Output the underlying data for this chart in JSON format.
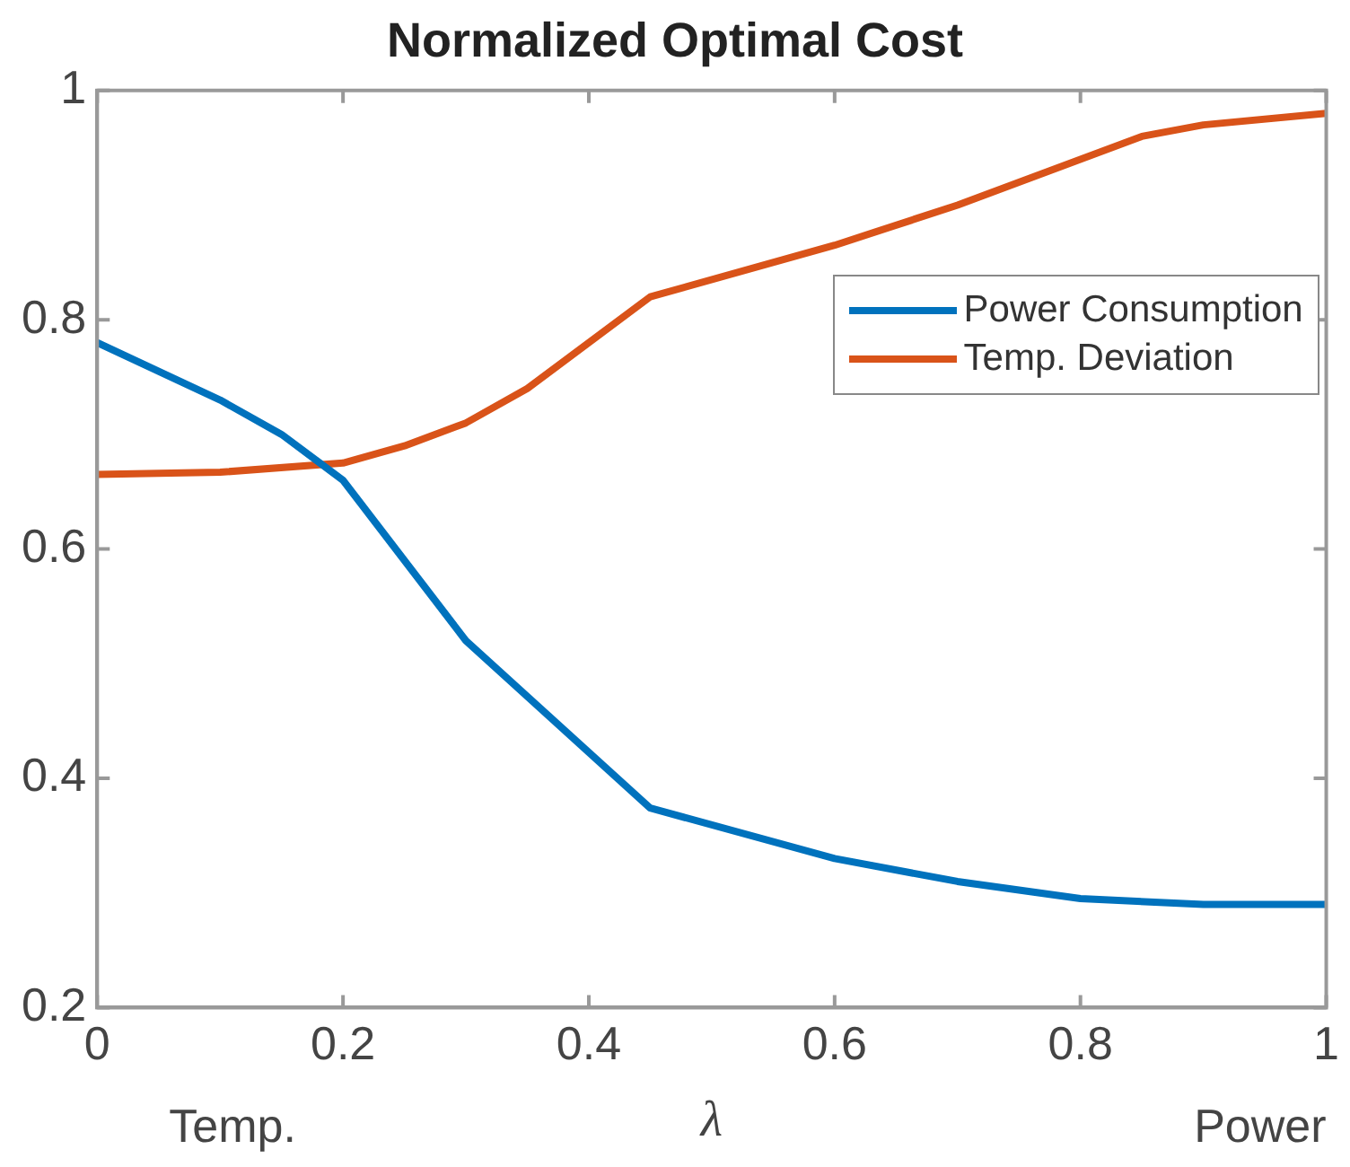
{
  "chart_data": {
    "type": "line",
    "title": "Normalized Optimal Cost",
    "xlabel": "λ",
    "annotations": [
      "Temp.",
      "Power"
    ],
    "x": [
      0,
      0.1,
      0.15,
      0.2,
      0.3,
      0.45,
      0.6,
      0.7,
      0.8,
      0.9,
      1
    ],
    "series": [
      {
        "name": "Power Consumption",
        "color": "#0072bd",
        "values": [
          0.78,
          0.73,
          0.7,
          0.66,
          0.52,
          0.374,
          0.33,
          0.31,
          0.295,
          0.29,
          0.29
        ]
      },
      {
        "name": "Temp. Deviation",
        "color": "#d95319",
        "x": [
          0,
          0.1,
          0.2,
          0.25,
          0.3,
          0.35,
          0.45,
          0.6,
          0.7,
          0.85,
          0.9,
          1
        ],
        "values": [
          0.665,
          0.667,
          0.675,
          0.69,
          0.71,
          0.74,
          0.82,
          0.865,
          0.9,
          0.96,
          0.97,
          0.98
        ]
      }
    ],
    "xlim": [
      0,
      1
    ],
    "xticks": [
      0,
      0.2,
      0.4,
      0.6,
      0.8,
      1
    ],
    "ylim": [
      0.2,
      1
    ],
    "yticks": [
      0.2,
      0.4,
      0.6,
      0.8,
      1
    ],
    "grid": false,
    "legend": "right",
    "marker": "none",
    "line_style": "solid"
  }
}
